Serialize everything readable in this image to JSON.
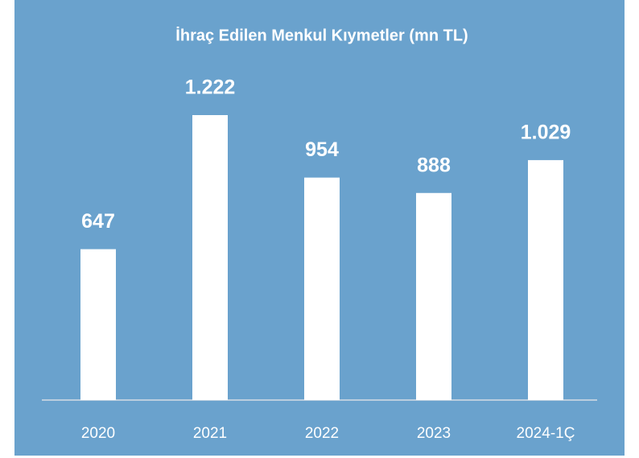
{
  "chart_data": {
    "type": "bar",
    "title": "İhraç Edilen Menkul Kıymetler (mn TL)",
    "categories": [
      "2020",
      "2021",
      "2022",
      "2023",
      "2024-1Ç"
    ],
    "values": [
      647,
      1222,
      954,
      888,
      1029
    ],
    "value_labels": [
      "647",
      "1.222",
      "954",
      "888",
      "1.029"
    ],
    "color": "#ffffff"
  }
}
